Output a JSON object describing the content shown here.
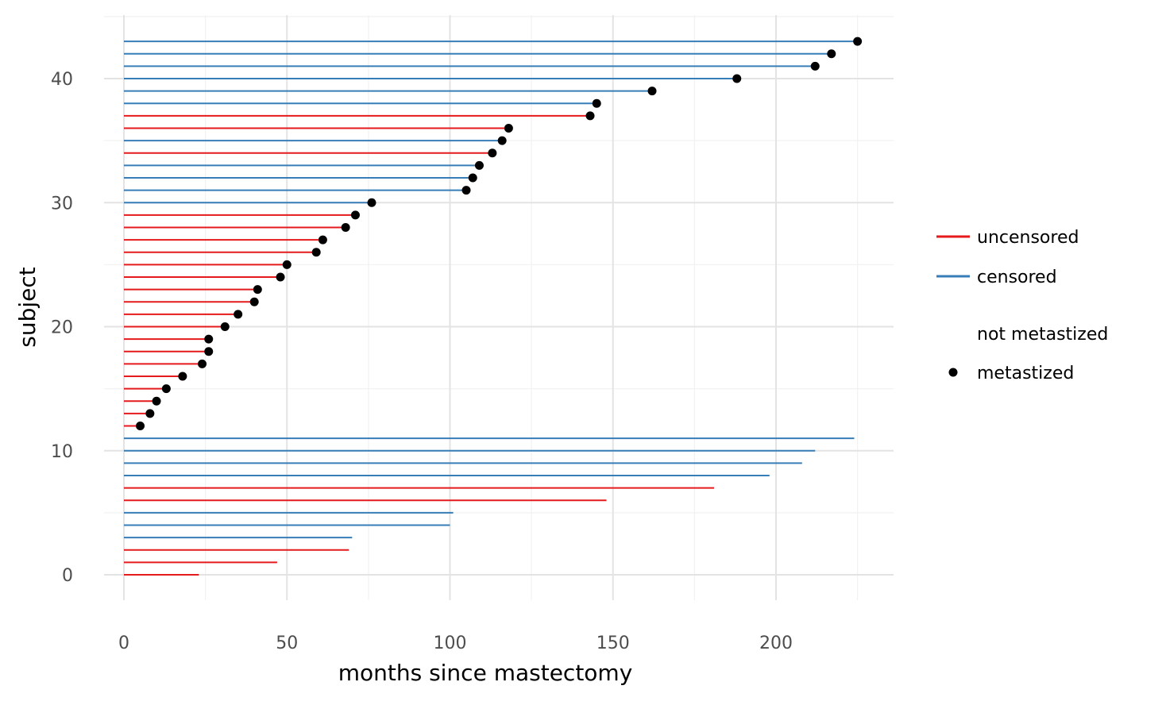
{
  "chart_data": {
    "type": "line",
    "subtype": "survival-swimmer-plot",
    "title": "",
    "xlabel": "months since mastectomy",
    "ylabel": "subject",
    "xlim": [
      0,
      230
    ],
    "ylim": [
      -2,
      44
    ],
    "x_ticks": [
      0,
      50,
      100,
      150,
      200
    ],
    "y_ticks": [
      0,
      10,
      20,
      30,
      40
    ],
    "grid": true,
    "legend_position": "right",
    "colors": {
      "uncensored": "#e41a1c",
      "censored": "#377eb8",
      "point": "#000000",
      "grid_major": "#e3e3e3",
      "grid_minor": "#f2f2f2"
    },
    "legend": {
      "status": [
        {
          "key": "uncensored",
          "label": "uncensored"
        },
        {
          "key": "censored",
          "label": "censored"
        }
      ],
      "metastasis": [
        {
          "key": "not",
          "label": "not metastized"
        },
        {
          "key": "yes",
          "label": "metastized"
        }
      ]
    },
    "subjects": [
      {
        "id": 0,
        "time": 23,
        "status": "uncensored",
        "metastized": false
      },
      {
        "id": 1,
        "time": 47,
        "status": "uncensored",
        "metastized": false
      },
      {
        "id": 2,
        "time": 69,
        "status": "uncensored",
        "metastized": false
      },
      {
        "id": 3,
        "time": 70,
        "status": "censored",
        "metastized": false
      },
      {
        "id": 4,
        "time": 100,
        "status": "censored",
        "metastized": false
      },
      {
        "id": 5,
        "time": 101,
        "status": "censored",
        "metastized": false
      },
      {
        "id": 6,
        "time": 148,
        "status": "uncensored",
        "metastized": false
      },
      {
        "id": 7,
        "time": 181,
        "status": "uncensored",
        "metastized": false
      },
      {
        "id": 8,
        "time": 198,
        "status": "censored",
        "metastized": false
      },
      {
        "id": 9,
        "time": 208,
        "status": "censored",
        "metastized": false
      },
      {
        "id": 10,
        "time": 212,
        "status": "censored",
        "metastized": false
      },
      {
        "id": 11,
        "time": 224,
        "status": "censored",
        "metastized": false
      },
      {
        "id": 12,
        "time": 5,
        "status": "uncensored",
        "metastized": true
      },
      {
        "id": 13,
        "time": 8,
        "status": "uncensored",
        "metastized": true
      },
      {
        "id": 14,
        "time": 10,
        "status": "uncensored",
        "metastized": true
      },
      {
        "id": 15,
        "time": 13,
        "status": "uncensored",
        "metastized": true
      },
      {
        "id": 16,
        "time": 18,
        "status": "uncensored",
        "metastized": true
      },
      {
        "id": 17,
        "time": 24,
        "status": "uncensored",
        "metastized": true
      },
      {
        "id": 18,
        "time": 26,
        "status": "uncensored",
        "metastized": true
      },
      {
        "id": 19,
        "time": 26,
        "status": "uncensored",
        "metastized": true
      },
      {
        "id": 20,
        "time": 31,
        "status": "uncensored",
        "metastized": true
      },
      {
        "id": 21,
        "time": 35,
        "status": "uncensored",
        "metastized": true
      },
      {
        "id": 22,
        "time": 40,
        "status": "uncensored",
        "metastized": true
      },
      {
        "id": 23,
        "time": 41,
        "status": "uncensored",
        "metastized": true
      },
      {
        "id": 24,
        "time": 48,
        "status": "uncensored",
        "metastized": true
      },
      {
        "id": 25,
        "time": 50,
        "status": "uncensored",
        "metastized": true
      },
      {
        "id": 26,
        "time": 59,
        "status": "uncensored",
        "metastized": true
      },
      {
        "id": 27,
        "time": 61,
        "status": "uncensored",
        "metastized": true
      },
      {
        "id": 28,
        "time": 68,
        "status": "uncensored",
        "metastized": true
      },
      {
        "id": 29,
        "time": 71,
        "status": "uncensored",
        "metastized": true
      },
      {
        "id": 30,
        "time": 76,
        "status": "censored",
        "metastized": true
      },
      {
        "id": 31,
        "time": 105,
        "status": "censored",
        "metastized": true
      },
      {
        "id": 32,
        "time": 107,
        "status": "censored",
        "metastized": true
      },
      {
        "id": 33,
        "time": 109,
        "status": "censored",
        "metastized": true
      },
      {
        "id": 34,
        "time": 113,
        "status": "uncensored",
        "metastized": true
      },
      {
        "id": 35,
        "time": 116,
        "status": "censored",
        "metastized": true
      },
      {
        "id": 36,
        "time": 118,
        "status": "uncensored",
        "metastized": true
      },
      {
        "id": 37,
        "time": 143,
        "status": "uncensored",
        "metastized": true
      },
      {
        "id": 38,
        "time": 145,
        "status": "censored",
        "metastized": true
      },
      {
        "id": 39,
        "time": 162,
        "status": "censored",
        "metastized": true
      },
      {
        "id": 40,
        "time": 188,
        "status": "censored",
        "metastized": true
      },
      {
        "id": 41,
        "time": 212,
        "status": "censored",
        "metastized": true
      },
      {
        "id": 42,
        "time": 217,
        "status": "censored",
        "metastized": true
      },
      {
        "id": 43,
        "time": 225,
        "status": "censored",
        "metastized": true
      }
    ]
  }
}
